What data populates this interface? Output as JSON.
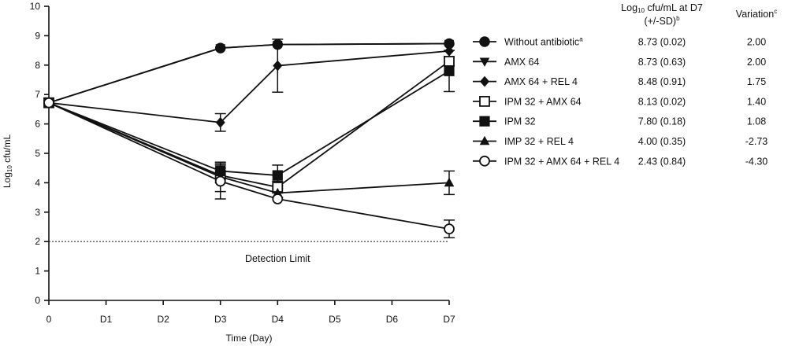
{
  "chart_data": {
    "type": "line",
    "xlabel": "Time (Day)",
    "ylabel_prefix": "Log",
    "ylabel_sub": "10",
    "ylabel_suffix": " cfu/mL",
    "x_categories": [
      "0",
      "D1",
      "D2",
      "D3",
      "D4",
      "D5",
      "D6",
      "D7"
    ],
    "x": [
      0,
      3,
      4,
      7
    ],
    "xlim": [
      0,
      7
    ],
    "ylim": [
      0,
      10
    ],
    "yticks": [
      0,
      1,
      2,
      3,
      4,
      5,
      6,
      7,
      8,
      9,
      10
    ],
    "grid": false,
    "legend_position": "right",
    "detection_limit": {
      "value": 2,
      "label": "Detection Limit"
    },
    "table_headers": {
      "log_main": "Log",
      "log_sub": "10",
      "log_rest": " cfu/mL at D7",
      "log_line2": "(+/-SD)",
      "log_sup": "b",
      "variation": "Variation",
      "variation_sup": "c"
    },
    "series": [
      {
        "name": "Without antibiotic",
        "name_sup": "a",
        "marker": "filled-circle",
        "values": [
          6.72,
          8.58,
          8.7,
          8.73
        ],
        "errors": [
          0.05,
          0.08,
          0.1,
          0.1
        ],
        "d7_log": "8.73 (0.02)",
        "variation": "2.00"
      },
      {
        "name": "AMX 64",
        "name_sup": "",
        "marker": "filled-triangle-down",
        "values": [
          6.72,
          8.58,
          8.7,
          8.73
        ],
        "errors": [
          0.05,
          0.08,
          0.1,
          0.1
        ],
        "d7_log": "8.73 (0.63)",
        "variation": "2.00"
      },
      {
        "name": "AMX 64 + REL 4",
        "name_sup": "",
        "marker": "filled-diamond",
        "values": [
          6.72,
          6.05,
          7.98,
          8.48
        ],
        "errors": [
          0.05,
          0.3,
          0.9,
          0.1
        ],
        "d7_log": "8.48 (0.91)",
        "variation": "1.75"
      },
      {
        "name": "IPM 32 + AMX 64",
        "name_sup": "",
        "marker": "open-square",
        "values": [
          6.72,
          4.25,
          3.85,
          8.13
        ],
        "errors": [
          0.05,
          0.25,
          0.2,
          0.15
        ],
        "d7_log": "8.13 (0.02)",
        "variation": "1.40"
      },
      {
        "name": "IPM 32",
        "name_sup": "",
        "marker": "filled-square",
        "values": [
          6.72,
          4.4,
          4.25,
          7.8
        ],
        "errors": [
          0.05,
          0.2,
          0.35,
          0.7
        ],
        "d7_log": "7.80 (0.18)",
        "variation": "1.08"
      },
      {
        "name": "IMP 32 + REL 4",
        "name_sup": "",
        "marker": "filled-triangle-up",
        "values": [
          6.72,
          4.2,
          3.65,
          4.0
        ],
        "errors": [
          0.05,
          0.5,
          0.15,
          0.4
        ],
        "d7_log": "4.00 (0.35)",
        "variation": "-2.73"
      },
      {
        "name": "IPM 32 + AMX 64 + REL 4",
        "name_sup": "",
        "marker": "open-circle",
        "values": [
          6.72,
          4.05,
          3.45,
          2.43
        ],
        "errors": [
          0.05,
          0.6,
          0.1,
          0.3
        ],
        "d7_log": "2.43 (0.84)",
        "variation": "-4.30"
      }
    ]
  }
}
